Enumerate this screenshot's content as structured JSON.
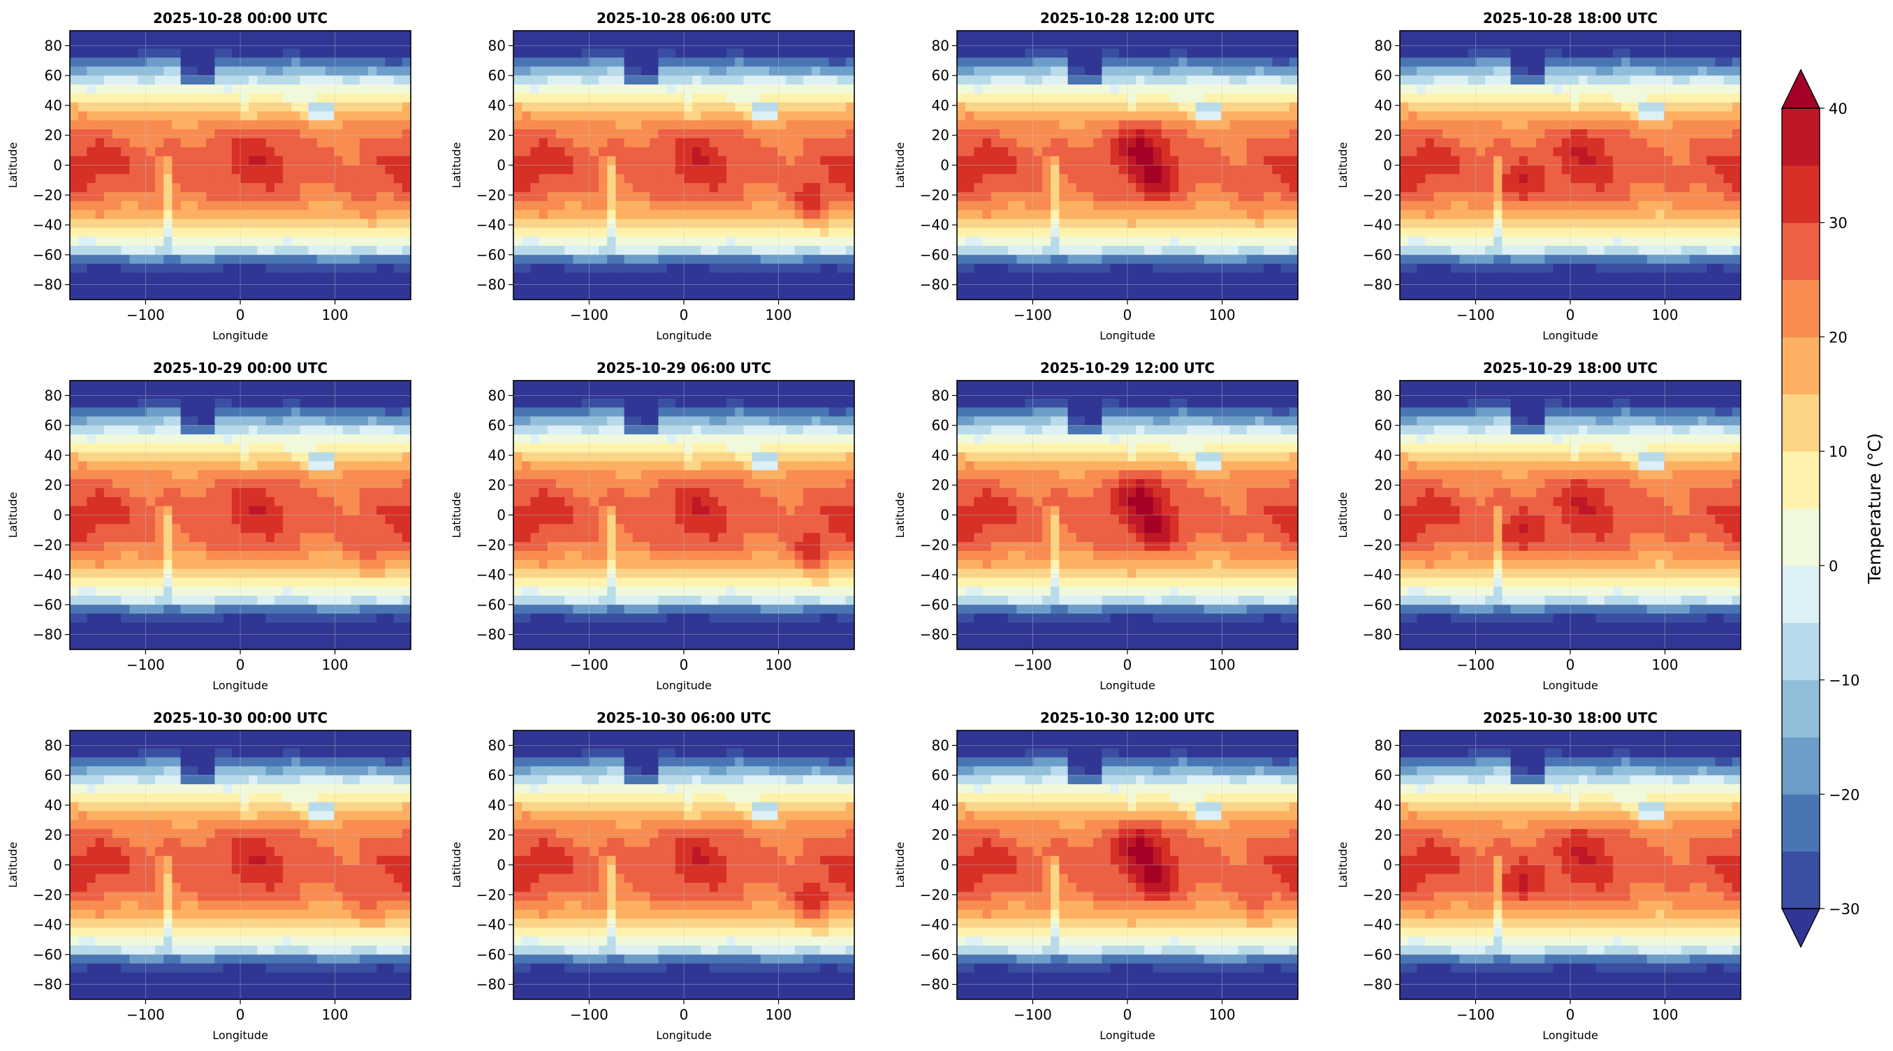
{
  "chart_data": {
    "type": "heatmap",
    "description_units": "Temperature (°C)",
    "xlabel": "Longitude",
    "ylabel": "Latitude",
    "xlim": [
      -180,
      180
    ],
    "ylim": [
      -90,
      90
    ],
    "x_ticks": [
      -100,
      0,
      100
    ],
    "x_tick_labels": [
      "−100",
      "0",
      "100"
    ],
    "y_ticks": [
      80,
      60,
      40,
      20,
      0,
      -20,
      -40,
      -60,
      -80
    ],
    "y_tick_labels": [
      "80",
      "60",
      "40",
      "20",
      "0",
      "−20",
      "−40",
      "−60",
      "−80"
    ],
    "grid": true,
    "panels": [
      {
        "title": "2025-10-28 00:00 UTC",
        "hot": [
          {
            "lon": 20,
            "lat": 10,
            "r": 0.25
          },
          {
            "lon": -55,
            "lat": -15,
            "r": 0.15
          },
          {
            "lon": 135,
            "lat": -25,
            "r": 0.25
          }
        ]
      },
      {
        "title": "2025-10-28 06:00 UTC",
        "hot": [
          {
            "lon": 20,
            "lat": 10,
            "r": 0.3
          },
          {
            "lon": 135,
            "lat": -25,
            "r": 0.85
          }
        ]
      },
      {
        "title": "2025-10-28 12:00 UTC",
        "hot": [
          {
            "lon": 15,
            "lat": 15,
            "r": 0.95
          },
          {
            "lon": 30,
            "lat": -10,
            "r": 0.75
          },
          {
            "lon": 135,
            "lat": -25,
            "r": 0.25
          }
        ]
      },
      {
        "title": "2025-10-28 18:00 UTC",
        "hot": [
          {
            "lon": -55,
            "lat": -15,
            "r": 0.85
          },
          {
            "lon": 15,
            "lat": 15,
            "r": 0.45
          }
        ]
      },
      {
        "title": "2025-10-29 00:00 UTC",
        "hot": [
          {
            "lon": 20,
            "lat": 10,
            "r": 0.25
          },
          {
            "lon": 135,
            "lat": -25,
            "r": 0.4
          }
        ]
      },
      {
        "title": "2025-10-29 06:00 UTC",
        "hot": [
          {
            "lon": 20,
            "lat": 10,
            "r": 0.3
          },
          {
            "lon": 135,
            "lat": -25,
            "r": 0.9
          }
        ]
      },
      {
        "title": "2025-10-29 12:00 UTC",
        "hot": [
          {
            "lon": 15,
            "lat": 15,
            "r": 0.95
          },
          {
            "lon": 30,
            "lat": -10,
            "r": 0.75
          }
        ]
      },
      {
        "title": "2025-10-29 18:00 UTC",
        "hot": [
          {
            "lon": -55,
            "lat": -15,
            "r": 0.85
          },
          {
            "lon": 15,
            "lat": 15,
            "r": 0.45
          }
        ]
      },
      {
        "title": "2025-10-30 00:00 UTC",
        "hot": [
          {
            "lon": 20,
            "lat": 10,
            "r": 0.25
          },
          {
            "lon": 135,
            "lat": -25,
            "r": 0.45
          },
          {
            "lon": -55,
            "lat": -15,
            "r": 0.2
          }
        ]
      },
      {
        "title": "2025-10-30 06:00 UTC",
        "hot": [
          {
            "lon": 20,
            "lat": 10,
            "r": 0.3
          },
          {
            "lon": 135,
            "lat": -25,
            "r": 0.95
          }
        ]
      },
      {
        "title": "2025-10-30 12:00 UTC",
        "hot": [
          {
            "lon": 15,
            "lat": 15,
            "r": 0.95
          },
          {
            "lon": 30,
            "lat": -10,
            "r": 0.75
          },
          {
            "lon": 135,
            "lat": -25,
            "r": 0.35
          }
        ]
      },
      {
        "title": "2025-10-30 18:00 UTC",
        "hot": [
          {
            "lon": -55,
            "lat": -15,
            "r": 0.9
          },
          {
            "lon": 15,
            "lat": 15,
            "r": 0.45
          }
        ]
      }
    ],
    "colorbar": {
      "label": "Temperature (°C)",
      "min": -30,
      "max": 40,
      "step": 5,
      "extend": "both",
      "ticks": [
        40,
        30,
        20,
        10,
        0,
        -10,
        -20,
        -30
      ],
      "tick_labels": [
        "40",
        "30",
        "20",
        "10",
        "0",
        "−10",
        "−20",
        "−30"
      ],
      "levels_colors": [
        "#313695",
        "#3a4fa2",
        "#4a75b4",
        "#6c9ec9",
        "#91bedb",
        "#b7dbea",
        "#dcf0f6",
        "#f1f9dc",
        "#fef2ac",
        "#fdd586",
        "#fdb062",
        "#f88c51",
        "#ec6044",
        "#d73027",
        "#be1827",
        "#a50026"
      ]
    }
  }
}
